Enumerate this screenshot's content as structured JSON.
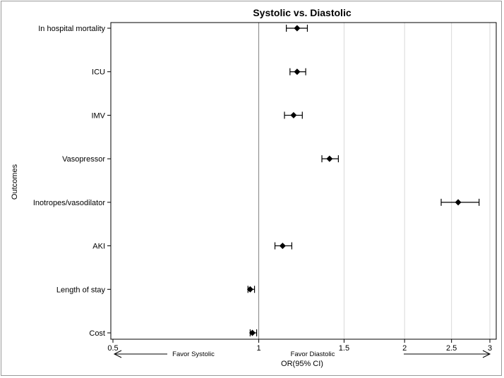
{
  "chart_data": {
    "type": "forest",
    "title": "Systolic vs. Diastolic",
    "xlabel": "OR(95% CI)",
    "ylabel": "Outcomes",
    "x_scale": "log",
    "xlim": [
      0.5,
      3
    ],
    "xticks": [
      0.5,
      1,
      1.5,
      2,
      2.5,
      3
    ],
    "xtick_labels": [
      "0.5",
      "1",
      "1.5",
      "2",
      "2.5",
      "3"
    ],
    "reference_line": 1,
    "grid": "vertical",
    "categories": [
      "In hospital mortality",
      "ICU",
      "IMV",
      "Vasopressor",
      "Inotropes/vasodilator",
      "AKI",
      "Length of stay",
      "Cost"
    ],
    "or": [
      1.2,
      1.2,
      1.18,
      1.4,
      2.58,
      1.12,
      0.96,
      0.97
    ],
    "ci_low": [
      1.14,
      1.16,
      1.13,
      1.35,
      2.38,
      1.08,
      0.95,
      0.96
    ],
    "ci_high": [
      1.26,
      1.25,
      1.23,
      1.46,
      2.85,
      1.17,
      0.98,
      0.99
    ],
    "annotations": {
      "left": "Favor Systolic",
      "right": "Favor Diastolic"
    },
    "colors": {
      "marker": "#000000",
      "grid": "#d9d9d9",
      "axis": "#000000"
    }
  }
}
